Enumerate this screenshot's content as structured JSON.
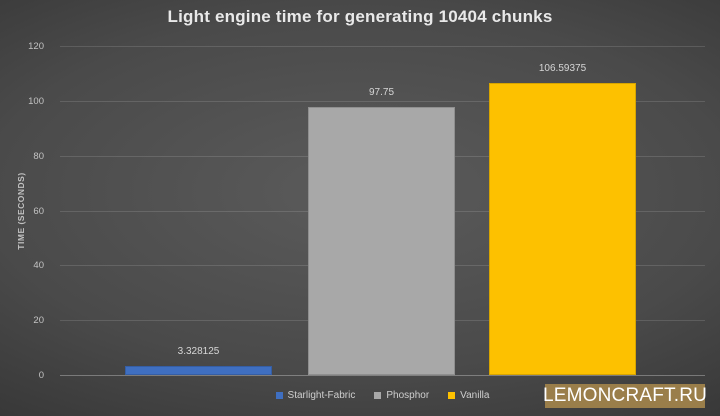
{
  "title": "Light engine time for generating 10404 chunks",
  "watermark": {
    "label": "LEMONCRAFT.RU"
  },
  "chart_data": {
    "type": "bar",
    "title": "Light engine time for generating 10404 chunks",
    "xlabel": "",
    "ylabel": "TIME (SECONDS)",
    "ylim": [
      0,
      120
    ],
    "yticks": [
      0,
      20,
      40,
      60,
      80,
      100,
      120
    ],
    "grid": true,
    "legend_position": "bottom",
    "categories": [
      "Starlight-Fabric",
      "Phosphor",
      "Vanilla"
    ],
    "values": [
      3.328125,
      97.75,
      106.59375
    ],
    "value_labels": [
      "3.328125",
      "97.75",
      "106.59375"
    ],
    "bar_colors": [
      "#3f6fc1",
      "#a8a8a8",
      "#fdc100"
    ]
  },
  "colors": {
    "background_center": "#5b5b5b",
    "background_edge": "#282828",
    "title_text": "#e9e9e9",
    "tick_text": "#c3c3c3",
    "value_text": "#d6d6d6",
    "legend_text": "#cfcfcf",
    "gridline": "rgba(255,255,255,0.13)",
    "watermark_bg": "#9a7e4a",
    "watermark_text": "#ffffff"
  }
}
